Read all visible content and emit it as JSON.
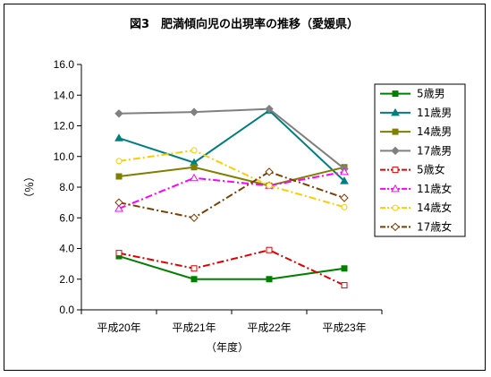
{
  "chart_data": {
    "type": "line",
    "title": "図3　肥満傾向児の出現率の推移（愛媛県）",
    "xlabel": "（年度）",
    "ylabel": "（％）",
    "ylim": [
      0,
      16
    ],
    "yticks": [
      "0.0",
      "2.0",
      "4.0",
      "6.0",
      "8.0",
      "10.0",
      "12.0",
      "14.0",
      "16.0"
    ],
    "categories": [
      "平成20年",
      "平成21年",
      "平成22年",
      "平成23年"
    ],
    "grid": false,
    "legend_position": "right",
    "series": [
      {
        "name": "5歳男",
        "values": [
          3.5,
          2.0,
          2.0,
          2.7
        ],
        "color": "#007f00",
        "dash": "solid",
        "marker": "square",
        "filled": true
      },
      {
        "name": "11歳男",
        "values": [
          11.2,
          9.6,
          13.0,
          8.4
        ],
        "color": "#007f7f",
        "dash": "solid",
        "marker": "triangle",
        "filled": true
      },
      {
        "name": "14歳男",
        "values": [
          8.7,
          9.3,
          8.1,
          9.3
        ],
        "color": "#7f7f00",
        "dash": "solid",
        "marker": "square",
        "filled": true
      },
      {
        "name": "17歳男",
        "values": [
          12.8,
          12.9,
          13.1,
          9.2
        ],
        "color": "#808080",
        "dash": "solid",
        "marker": "diamond",
        "filled": true
      },
      {
        "name": "5歳女",
        "values": [
          3.7,
          2.7,
          3.9,
          1.6
        ],
        "color": "#e00000",
        "dash": "dashdot",
        "marker": "square",
        "filled": false
      },
      {
        "name": "11歳女",
        "values": [
          6.6,
          8.6,
          8.1,
          9.0
        ],
        "color": "#ff00ff",
        "dash": "dashdot",
        "marker": "triangle",
        "filled": false
      },
      {
        "name": "14歳女",
        "values": [
          9.7,
          10.4,
          8.1,
          6.7
        ],
        "color": "#ffcc00",
        "dash": "dashdot",
        "marker": "circle",
        "filled": false
      },
      {
        "name": "17歳女",
        "values": [
          7.0,
          6.0,
          9.0,
          7.3
        ],
        "color": "#7f3f00",
        "dash": "dashdot",
        "marker": "diamond",
        "filled": false
      }
    ]
  }
}
